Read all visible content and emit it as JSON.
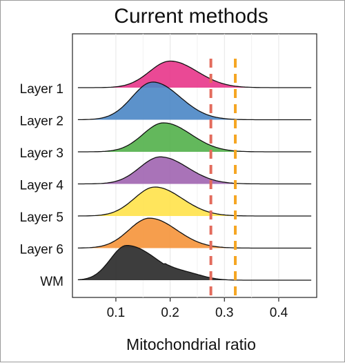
{
  "chart_data": {
    "type": "ridgeline",
    "title": "Current methods",
    "xlabel": "Mitochondrial ratio",
    "ylabel": "",
    "xlim": [
      0.02,
      0.47
    ],
    "xticks": [
      0.1,
      0.2,
      0.3,
      0.4
    ],
    "xtick_labels": [
      "0.1",
      "0.2",
      "0.3",
      "0.4"
    ],
    "grid": true,
    "categories": [
      "Layer 1",
      "Layer 2",
      "Layer 3",
      "Layer 4",
      "Layer 5",
      "Layer 6",
      "WM"
    ],
    "series": [
      {
        "color": "#e8358a",
        "x_range": [
          0.03,
          0.46
        ],
        "peak_x": 0.2,
        "peak_height": 0.55
      },
      {
        "color": "#4a86c5",
        "x_range": [
          0.03,
          0.46
        ],
        "peak_x": 0.168,
        "peak_height": 0.78
      },
      {
        "color": "#52b04a",
        "x_range": [
          0.03,
          0.46
        ],
        "peak_x": 0.188,
        "peak_height": 0.6
      },
      {
        "color": "#a064b0",
        "x_range": [
          0.03,
          0.46
        ],
        "peak_x": 0.182,
        "peak_height": 0.56
      },
      {
        "color": "#ffe24a",
        "x_range": [
          0.03,
          0.46
        ],
        "peak_x": 0.172,
        "peak_height": 0.6
      },
      {
        "color": "#f5943a",
        "x_range": [
          0.03,
          0.46
        ],
        "peak_x": 0.162,
        "peak_height": 0.62
      },
      {
        "color": "#333333",
        "x_range": [
          0.03,
          0.46
        ],
        "peak_x": 0.12,
        "peak_height": 0.72
      }
    ],
    "reference_lines": [
      {
        "x": 0.275,
        "color": "#e36b5c",
        "style": "dashed"
      },
      {
        "x": 0.32,
        "color": "#f5a623",
        "style": "dashed"
      }
    ]
  }
}
